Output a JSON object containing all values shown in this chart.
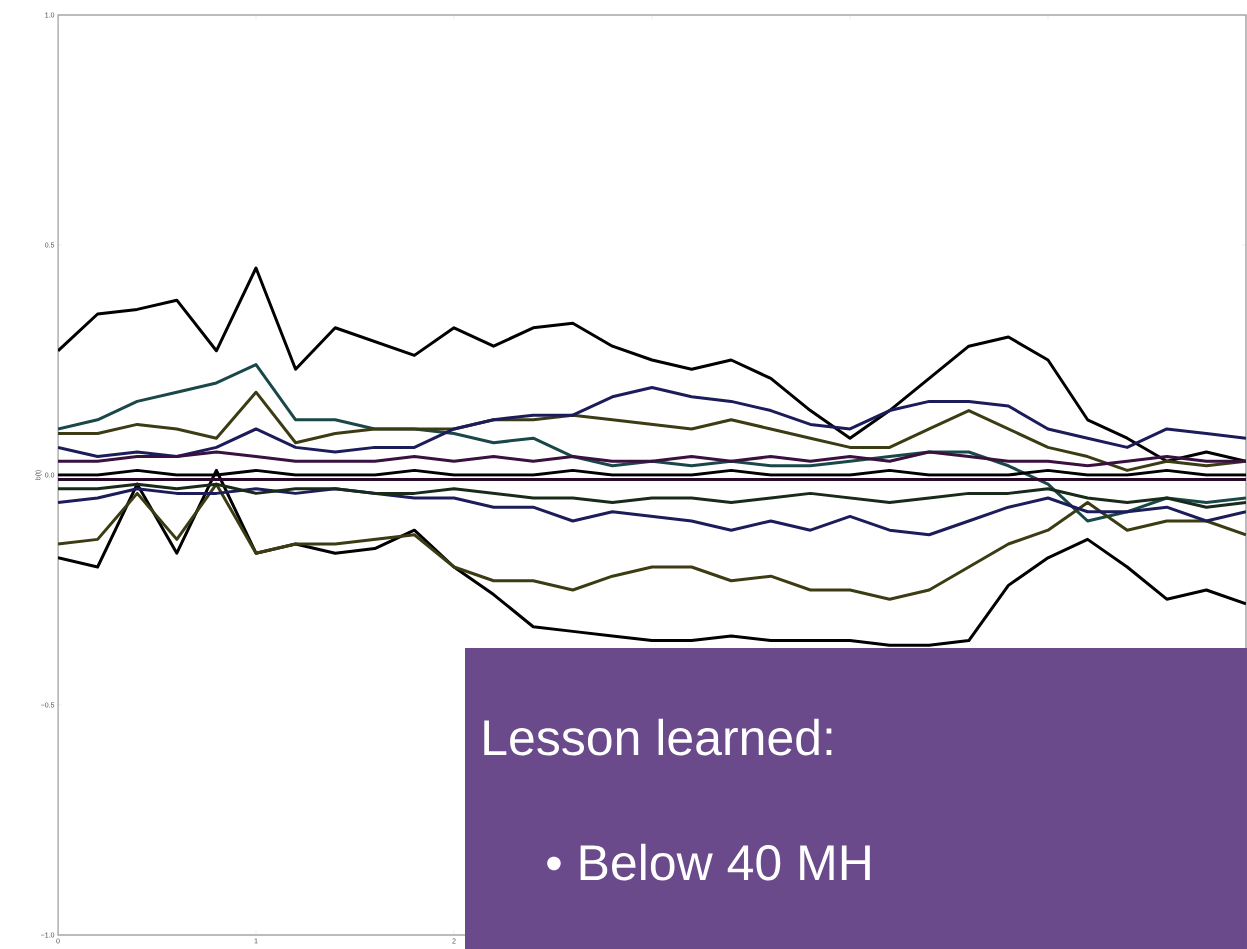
{
  "chart_data": {
    "type": "line",
    "ylabel": "b(t)",
    "annotations": [
      "Lesson learned:",
      "• Below 40 MH"
    ],
    "x": [
      0,
      0.2,
      0.4,
      0.6,
      0.8,
      1.0,
      1.2,
      1.4,
      1.6,
      1.8,
      2.0,
      2.2,
      2.4,
      2.6,
      2.8,
      3.0,
      3.2,
      3.4,
      3.6,
      3.8,
      4.0,
      4.2,
      4.4,
      4.6,
      4.8,
      5.0,
      5.2,
      5.4,
      5.6,
      5.8,
      6.0
    ],
    "xlim": [
      0,
      6
    ],
    "ylim": [
      -1.0,
      1.0
    ],
    "xticks": [
      0,
      1,
      2,
      {
        "value": 3,
        "label": null
      },
      {
        "value": 4,
        "label": null
      },
      {
        "value": 5,
        "label": null
      },
      {
        "value": 6,
        "label": null
      }
    ],
    "yticks": [
      {
        "value": -1.0,
        "label": "−1.0"
      },
      {
        "value": -0.5,
        "label": "−0.5"
      },
      {
        "value": 0.0,
        "label": "0.0"
      },
      {
        "value": 0.5,
        "label": "0.5"
      },
      {
        "value": 1.0,
        "label": "1.0"
      }
    ],
    "marker": "none",
    "line_style": "solid",
    "series": [
      {
        "color": "#000000",
        "values": [
          0.27,
          0.35,
          0.36,
          0.38,
          0.27,
          0.45,
          0.23,
          0.32,
          0.29,
          0.26,
          0.32,
          0.28,
          0.32,
          0.33,
          0.28,
          0.25,
          0.23,
          0.25,
          0.21,
          0.14,
          0.08,
          0.14,
          0.21,
          0.28,
          0.3,
          0.25,
          0.12,
          0.08,
          0.03,
          0.05,
          0.03
        ]
      },
      {
        "color": "#000000",
        "values": [
          -0.18,
          -0.2,
          -0.02,
          -0.17,
          0.01,
          -0.17,
          -0.15,
          -0.17,
          -0.16,
          -0.12,
          -0.2,
          -0.26,
          -0.33,
          -0.34,
          -0.35,
          -0.36,
          -0.36,
          -0.35,
          -0.36,
          -0.36,
          -0.36,
          -0.37,
          -0.37,
          -0.36,
          -0.24,
          -0.18,
          -0.14,
          -0.2,
          -0.27,
          -0.25,
          -0.28
        ]
      },
      {
        "color": "#1a4848",
        "values": [
          0.1,
          0.12,
          0.16,
          0.18,
          0.2,
          0.24,
          0.12,
          0.12,
          0.1,
          0.1,
          0.09,
          0.07,
          0.08,
          0.04,
          0.02,
          0.03,
          0.02,
          0.03,
          0.02,
          0.02,
          0.03,
          0.04,
          0.05,
          0.05,
          0.02,
          -0.02,
          -0.1,
          -0.08,
          -0.05,
          -0.06,
          -0.05
        ]
      },
      {
        "color": "#3c3c14",
        "values": [
          0.09,
          0.09,
          0.11,
          0.1,
          0.08,
          0.18,
          0.07,
          0.09,
          0.1,
          0.1,
          0.1,
          0.12,
          0.12,
          0.13,
          0.12,
          0.11,
          0.1,
          0.12,
          0.1,
          0.08,
          0.06,
          0.06,
          0.1,
          0.14,
          0.1,
          0.06,
          0.04,
          0.01,
          0.03,
          0.02,
          0.03
        ]
      },
      {
        "color": "#1c1c5a",
        "values": [
          0.06,
          0.04,
          0.05,
          0.04,
          0.06,
          0.1,
          0.06,
          0.05,
          0.06,
          0.06,
          0.1,
          0.12,
          0.13,
          0.13,
          0.17,
          0.19,
          0.17,
          0.16,
          0.14,
          0.11,
          0.1,
          0.14,
          0.16,
          0.16,
          0.15,
          0.1,
          0.08,
          0.06,
          0.1,
          0.09,
          0.08
        ]
      },
      {
        "color": "#3c3c14",
        "values": [
          -0.15,
          -0.14,
          -0.04,
          -0.14,
          -0.02,
          -0.17,
          -0.15,
          -0.15,
          -0.14,
          -0.13,
          -0.2,
          -0.23,
          -0.23,
          -0.25,
          -0.22,
          -0.2,
          -0.2,
          -0.23,
          -0.22,
          -0.25,
          -0.25,
          -0.27,
          -0.25,
          -0.2,
          -0.15,
          -0.12,
          -0.06,
          -0.12,
          -0.1,
          -0.1,
          -0.13
        ]
      },
      {
        "color": "#1c1c5a",
        "values": [
          -0.06,
          -0.05,
          -0.03,
          -0.04,
          -0.04,
          -0.03,
          -0.04,
          -0.03,
          -0.04,
          -0.05,
          -0.05,
          -0.07,
          -0.07,
          -0.1,
          -0.08,
          -0.09,
          -0.1,
          -0.12,
          -0.1,
          -0.12,
          -0.09,
          -0.12,
          -0.13,
          -0.1,
          -0.07,
          -0.05,
          -0.08,
          -0.08,
          -0.07,
          -0.1,
          -0.08
        ]
      },
      {
        "color": "#3a1040",
        "values": [
          0.03,
          0.03,
          0.04,
          0.04,
          0.05,
          0.04,
          0.03,
          0.03,
          0.03,
          0.04,
          0.03,
          0.04,
          0.03,
          0.04,
          0.03,
          0.03,
          0.04,
          0.03,
          0.04,
          0.03,
          0.04,
          0.03,
          0.05,
          0.04,
          0.03,
          0.03,
          0.02,
          0.03,
          0.04,
          0.03,
          0.03
        ]
      },
      {
        "color": "#1a2a1a",
        "values": [
          -0.03,
          -0.03,
          -0.02,
          -0.03,
          -0.02,
          -0.04,
          -0.03,
          -0.03,
          -0.04,
          -0.04,
          -0.03,
          -0.04,
          -0.05,
          -0.05,
          -0.06,
          -0.05,
          -0.05,
          -0.06,
          -0.05,
          -0.04,
          -0.05,
          -0.06,
          -0.05,
          -0.04,
          -0.04,
          -0.03,
          -0.05,
          -0.06,
          -0.05,
          -0.07,
          -0.06
        ]
      },
      {
        "color": "#000000",
        "values": [
          0.0,
          0.0,
          0.01,
          0.0,
          0.0,
          0.01,
          0.0,
          0.0,
          0.0,
          0.01,
          0.0,
          0.0,
          0.0,
          0.01,
          0.0,
          0.0,
          0.0,
          0.01,
          0.0,
          0.0,
          0.0,
          0.01,
          0.0,
          0.0,
          0.0,
          0.01,
          0.0,
          0.0,
          0.01,
          0.0,
          0.0
        ]
      },
      {
        "color": "#2a0a2a",
        "values": [
          -0.01,
          -0.01,
          -0.01,
          -0.01,
          -0.01,
          -0.01,
          -0.01,
          -0.01,
          -0.01,
          -0.01,
          -0.01,
          -0.01,
          -0.01,
          -0.01,
          -0.01,
          -0.01,
          -0.01,
          -0.01,
          -0.01,
          -0.01,
          -0.01,
          -0.01,
          -0.01,
          -0.01,
          -0.01,
          -0.01,
          -0.01,
          -0.01,
          -0.01,
          -0.01,
          -0.01
        ]
      }
    ]
  }
}
